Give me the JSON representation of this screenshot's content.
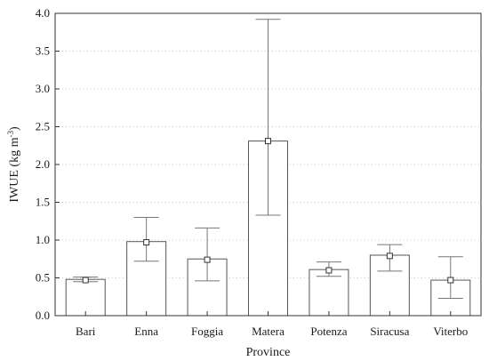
{
  "chart_data": {
    "type": "bar",
    "xlabel": "Province",
    "ylabel": "IWUE (kg m",
    "ylabel_sup": "-3",
    "ylabel_close": ")",
    "ylim": [
      0,
      4.0
    ],
    "yticks": [
      "0.0",
      "0.5",
      "1.0",
      "1.5",
      "2.0",
      "2.5",
      "3.0",
      "3.5",
      "4.0"
    ],
    "grid": "horizontal dotted",
    "categories": [
      "Bari",
      "Enna",
      "Foggia",
      "Matera",
      "Potenza",
      "Siracusa",
      "Viterbo"
    ],
    "values": [
      0.48,
      0.98,
      0.75,
      2.31,
      0.61,
      0.8,
      0.47
    ],
    "markers": [
      0.47,
      0.97,
      0.74,
      2.31,
      0.6,
      0.79,
      0.47
    ],
    "error_low": [
      0.45,
      0.72,
      0.46,
      1.33,
      0.52,
      0.59,
      0.23
    ],
    "error_high": [
      0.51,
      1.3,
      1.16,
      3.92,
      0.71,
      0.94,
      0.78
    ],
    "colors": {
      "bar_edge": "#555555",
      "bar_fill": "#ffffff",
      "error": "#777777",
      "grid": "#cccccc",
      "axis": "#333333"
    }
  }
}
